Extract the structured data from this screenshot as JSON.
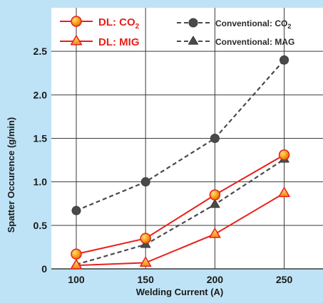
{
  "chart_data": {
    "type": "line",
    "title": "",
    "xlabel": "Welding Current (A)",
    "ylabel": "Spatter Occurence (g/min)",
    "x": [
      100,
      150,
      200,
      250
    ],
    "x_ticks": [
      "100",
      "150",
      "200",
      "250"
    ],
    "xlim": [
      82,
      278
    ],
    "y_ticks": [
      "0",
      "0.5",
      "1.0",
      "1.5",
      "2.0",
      "2.5"
    ],
    "ylim": [
      0,
      3.0
    ],
    "grid": true,
    "legend_position": "top",
    "series": [
      {
        "name": "DL: CO",
        "name_subscript": "2",
        "values": [
          0.17,
          0.35,
          0.85,
          1.31
        ],
        "color": "#e8201a",
        "line_style": "solid",
        "marker": "circle"
      },
      {
        "name": "DL: MIG",
        "values": [
          0.04,
          0.07,
          0.4,
          0.87
        ],
        "color": "#e8201a",
        "line_style": "solid",
        "marker": "triangle"
      },
      {
        "name": "Conventional: CO",
        "name_subscript": "2",
        "values": [
          0.67,
          1.0,
          1.5,
          2.4
        ],
        "color": "#4a4a4a",
        "line_style": "dashed",
        "marker": "circle"
      },
      {
        "name": "Conventional: MAG",
        "values": [
          0.05,
          0.28,
          0.74,
          1.26
        ],
        "color": "#4a4a4a",
        "line_style": "dashed",
        "marker": "triangle"
      }
    ],
    "colors": {
      "background": "#bfe3f6",
      "plot_area": "#ffffff",
      "grid": "#3a3a3a",
      "axis_text": "#1a1a1a",
      "dl_text": "#e8201a",
      "conv_text": "#2a2a2a",
      "marker_fill_orange": "#f7a21c",
      "marker_fill_grey": "#4a4a4a"
    }
  }
}
